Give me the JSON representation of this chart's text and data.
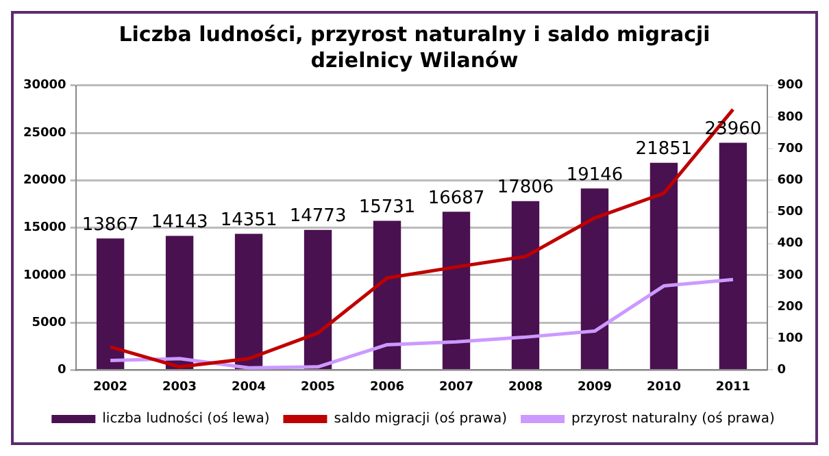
{
  "chart_data": {
    "type": "bar",
    "title": "Liczba ludności, przyrost naturalny i saldo migracji dzielnicy Wilanów",
    "categories": [
      "2002",
      "2003",
      "2004",
      "2005",
      "2006",
      "2007",
      "2008",
      "2009",
      "2010",
      "2011"
    ],
    "series": [
      {
        "name": "liczba ludności (oś lewa)",
        "color": "#4a1150",
        "values": [
          13867,
          14143,
          14351,
          14773,
          15731,
          16687,
          17806,
          19146,
          21851,
          23960
        ],
        "value_labels": [
          "13867",
          "14143",
          "14351",
          "14773",
          "15731",
          "16687",
          "17806",
          "19146",
          "21851",
          "23960"
        ]
      },
      {
        "name": "saldo migracji (oś prawa)",
        "type": "line",
        "axis": "y2",
        "color": "#c00000",
        "values": [
          73,
          10,
          36,
          117,
          291,
          326,
          359,
          481,
          559,
          824
        ]
      },
      {
        "name": "przyrost naturalny (oś prawa)",
        "type": "line",
        "axis": "y2",
        "color": "#cc99ff",
        "values": [
          30,
          36,
          7,
          10,
          80,
          89,
          104,
          123,
          266,
          286
        ]
      }
    ],
    "ylim": [
      0,
      30000
    ],
    "yticks": [
      0,
      5000,
      10000,
      15000,
      20000,
      25000,
      30000
    ],
    "y2lim": [
      0,
      900
    ],
    "y2ticks": [
      0,
      100,
      200,
      300,
      400,
      500,
      600,
      700,
      800,
      900
    ],
    "grid": "y",
    "legend": "bottom",
    "marker": "none"
  }
}
